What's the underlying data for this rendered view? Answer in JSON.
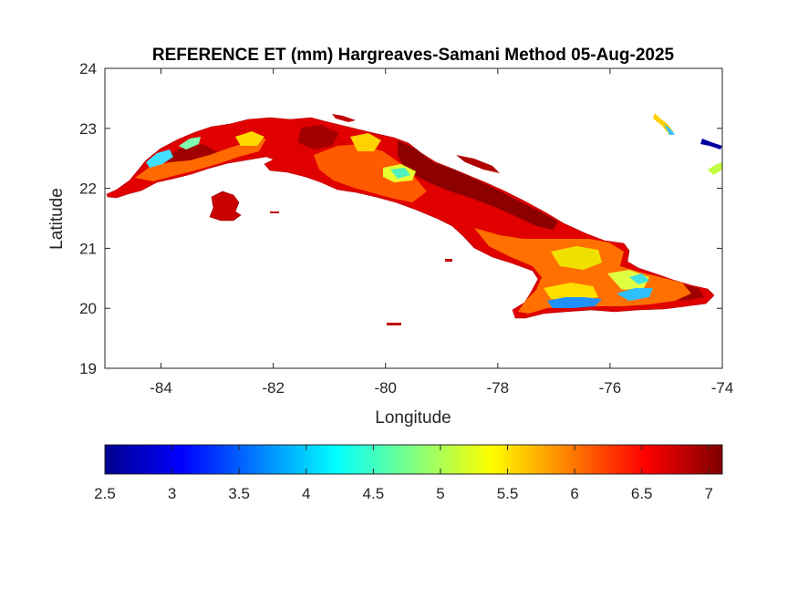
{
  "map": {
    "title": "REFERENCE ET (mm) Hargreaves-Samani Method  05-Aug-2025",
    "xlabel": "Longitude",
    "ylabel": "Latitude",
    "xlim": [
      -85,
      -74
    ],
    "ylim": [
      19,
      24
    ],
    "xticks": [
      -84,
      -82,
      -80,
      -78,
      -76,
      -74
    ],
    "yticks": [
      19,
      20,
      21,
      22,
      23,
      24
    ],
    "region": "Cuba",
    "colormap": "jet"
  },
  "colorbar": {
    "range": [
      2.5,
      7.1
    ],
    "ticks": [
      "2.5",
      "3",
      "3.5",
      "4",
      "4.5",
      "5",
      "5.5",
      "6",
      "6.5",
      "7"
    ],
    "colors": [
      "#00008f",
      "#0000ff",
      "#0080ff",
      "#00ffff",
      "#80ff80",
      "#ffff00",
      "#ff8000",
      "#ff0000",
      "#800000"
    ]
  }
}
